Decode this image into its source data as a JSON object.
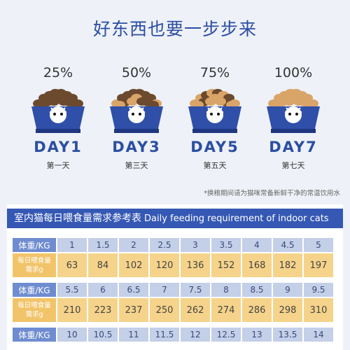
{
  "subtitle": "好东西也要一步步来",
  "steps": [
    {
      "percent": "25%",
      "day": "DAY1",
      "label": "第一天"
    },
    {
      "percent": "50%",
      "day": "DAY3",
      "label": "第三天"
    },
    {
      "percent": "75%",
      "day": "DAY5",
      "label": "第五天"
    },
    {
      "percent": "100%",
      "day": "DAY7",
      "label": "第七天"
    }
  ],
  "note": "*换粮期间请为猫咪常备新鲜干净的常温饮用水",
  "table": {
    "title": "室内猫每日喂食量需求参考表",
    "title_en": "Daily feeding requirement of indoor cats",
    "weight_label": "体重/KG",
    "feed_label": "每日喂食量需求g",
    "blocks": [
      {
        "weights": [
          "1",
          "1.5",
          "2",
          "2.5",
          "3",
          "3.5",
          "4",
          "4.5",
          "5"
        ],
        "feeds": [
          "63",
          "84",
          "102",
          "120",
          "136",
          "152",
          "168",
          "182",
          "197"
        ]
      },
      {
        "weights": [
          "5.5",
          "6",
          "6.5",
          "7",
          "7.5",
          "8",
          "8.5",
          "9",
          "9.5"
        ],
        "feeds": [
          "210",
          "223",
          "237",
          "250",
          "262",
          "274",
          "286",
          "298",
          "310"
        ]
      },
      {
        "weights": [
          "10",
          "10.5",
          "11",
          "11.5",
          "12",
          "12.5",
          "13",
          "13.5",
          "14"
        ]
      }
    ]
  }
}
